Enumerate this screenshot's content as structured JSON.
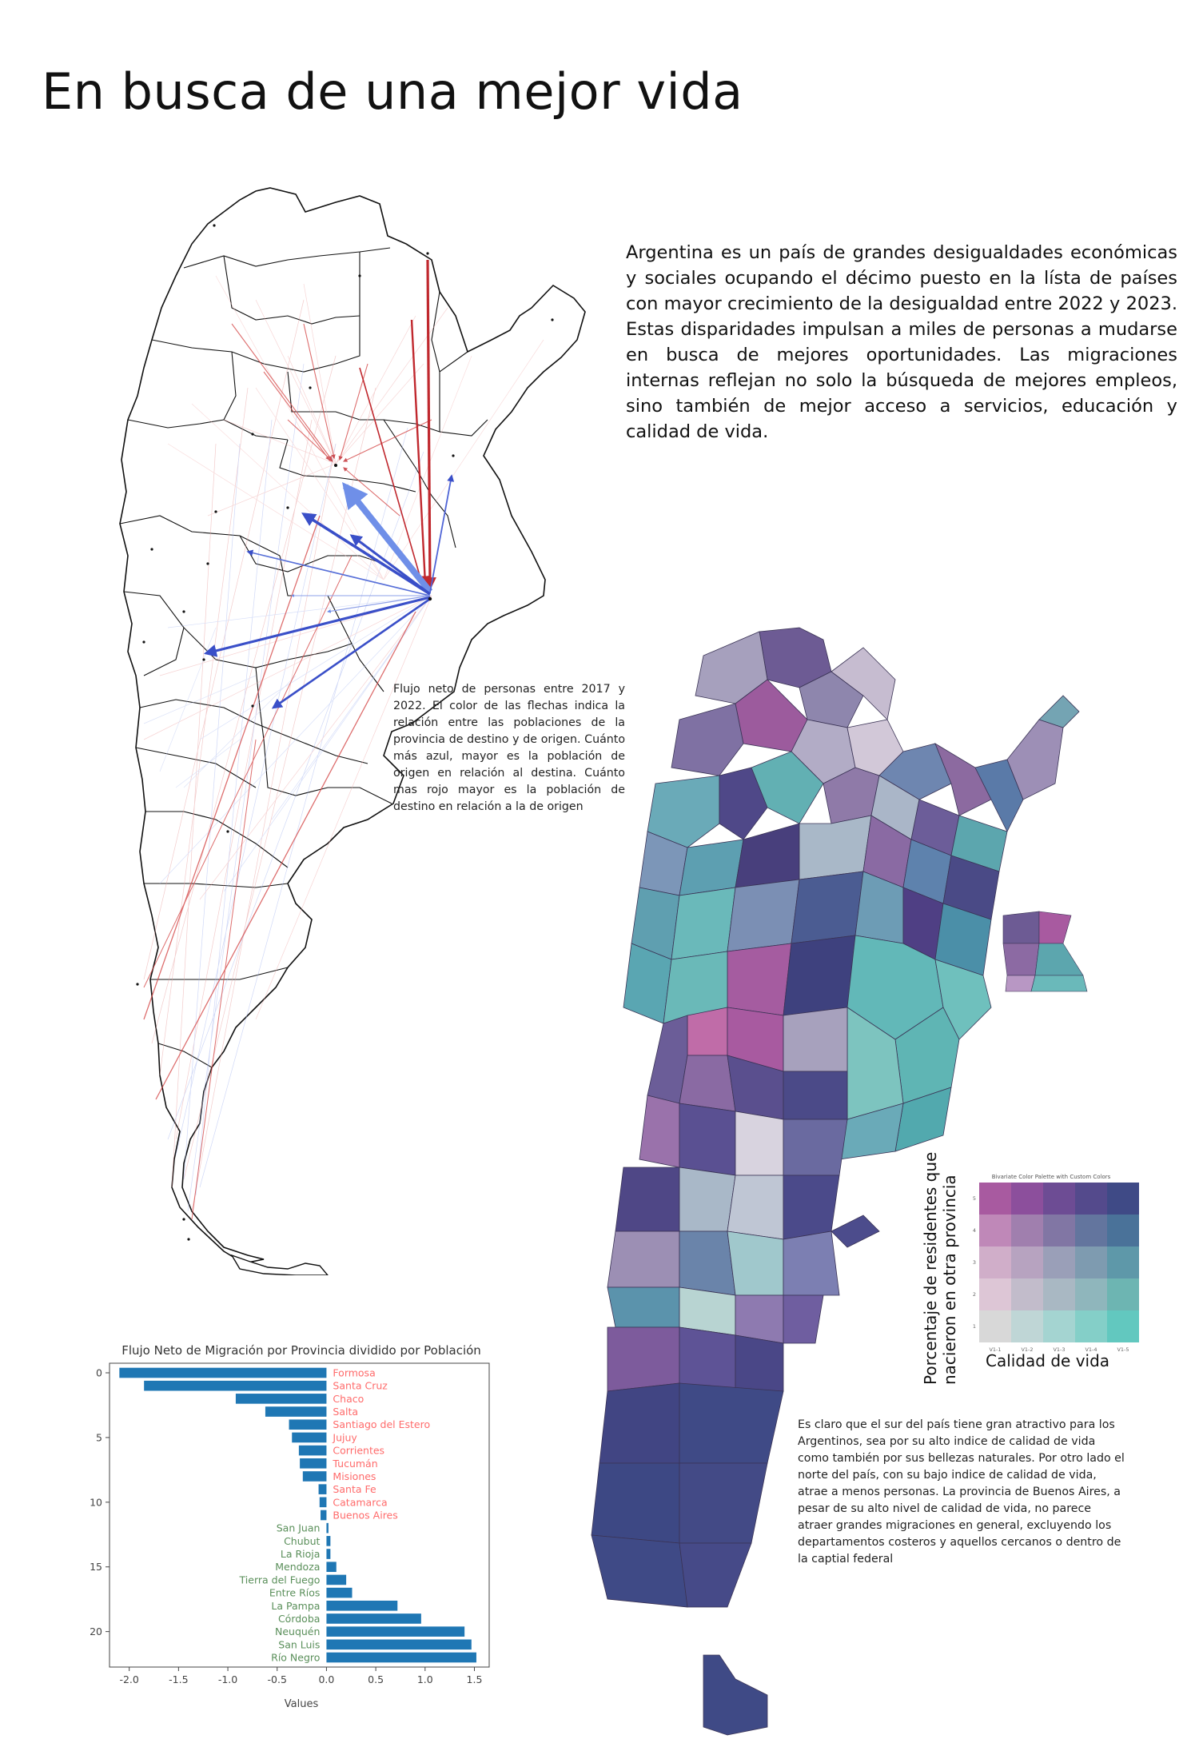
{
  "page": {
    "title": "En busca de una mejor vida",
    "intro": "Argentina es un país de grandes desigualdades económicas y sociales ocupando el décimo puesto en la lísta de países con mayor crecimiento de la desigualdad entre 2022 y 2023. Estas disparidades impulsan a miles de personas a mudarse en busca de mejores oportunidades. Las migraciones internas reflejan no solo la búsqueda de mejores empleos, sino también de mejor acceso a servicios, educación y calidad de vida.",
    "flow_map_caption": "Flujo neto de personas entre 2017 y 2022. El color de las flechas indica la relación entre las poblaciones de la provincia de destino y de origen. Cuánto más azul, mayor es la población de origen en relación al destina. Cuánto mas rojo mayor es la población de destino en relación a la de origen",
    "choropleth_caption": "Es claro que el sur del país tiene gran atractivo para los Argentinos, sea por su alto indice de calidad de vida como también por sus bellezas naturales. Por otro lado el norte del país, con su bajo indice de calidad de vida, atrae a menos personas. La provincia de Buenos Aires, a pesar de su alto nivel de calidad de vida, no parece atraer grandes migraciones en general, excluyendo los departamentos costeros y aquellos cercanos o dentro de la captial federal"
  },
  "colors": {
    "bar": "#1f77b4",
    "label_negative": "#ff6b6b",
    "label_positive": "#5a8f5a",
    "arrow_blue": "#3a4fc8",
    "arrow_red": "#c0282e",
    "arrow_light_blue": "#6f8fe8"
  },
  "legend": {
    "title": "Bivariate Color Palette with Custom Colors",
    "ylabel": "Porcentaje de residentes que nacieron en otra provincia",
    "xlabel": "Calidad de vida",
    "x_ticks": [
      "V1-1",
      "V1-2",
      "V1-3",
      "V1-4",
      "V1-5"
    ],
    "y_ticks": [
      "5",
      "4",
      "3",
      "2",
      "1"
    ],
    "grid": [
      [
        "#a85aa0",
        "#8c4f9c",
        "#6d4c94",
        "#544a8c",
        "#3f4a86"
      ],
      [
        "#bf88b8",
        "#a07fae",
        "#8176a4",
        "#63759e",
        "#4a7299"
      ],
      [
        "#d0aec9",
        "#b7a3c0",
        "#9a9fb8",
        "#7e9bb0",
        "#5e98a9"
      ],
      [
        "#ddc6d6",
        "#c2bccb",
        "#a9b8c3",
        "#8fb6bc",
        "#6db5b2"
      ],
      [
        "#d8d8d8",
        "#bfd6d6",
        "#a4d4d1",
        "#84cfc8",
        "#62c8bf"
      ]
    ]
  },
  "chart_data": {
    "type": "bar",
    "orientation": "horizontal",
    "title": "Flujo Neto de Migración por Provincia dividido por Población",
    "xlabel": "Values",
    "ylabel": "",
    "xlim": [
      -2.2,
      1.65
    ],
    "x_ticks": [
      -2.0,
      -1.5,
      -1.0,
      -0.5,
      0.0,
      0.5,
      1.0,
      1.5
    ],
    "y_ticks": [
      0,
      5,
      10,
      15,
      20
    ],
    "grid": false,
    "categories": [
      "Formosa",
      "Santa Cruz",
      "Chaco",
      "Salta",
      "Santiago del Estero",
      "Jujuy",
      "Corrientes",
      "Tucumán",
      "Misiones",
      "Santa Fe",
      "Catamarca",
      "Buenos Aires",
      "San Juan",
      "Chubut",
      "La Rioja",
      "Mendoza",
      "Tierra del Fuego",
      "Entre Ríos",
      "La Pampa",
      "Córdoba",
      "Neuquén",
      "San Luis",
      "Río Negro"
    ],
    "values": [
      -2.1,
      -1.85,
      -0.92,
      -0.62,
      -0.38,
      -0.35,
      -0.28,
      -0.27,
      -0.24,
      -0.08,
      -0.07,
      -0.06,
      0.02,
      0.04,
      0.04,
      0.1,
      0.2,
      0.26,
      0.72,
      0.96,
      1.4,
      1.47,
      1.52
    ]
  }
}
